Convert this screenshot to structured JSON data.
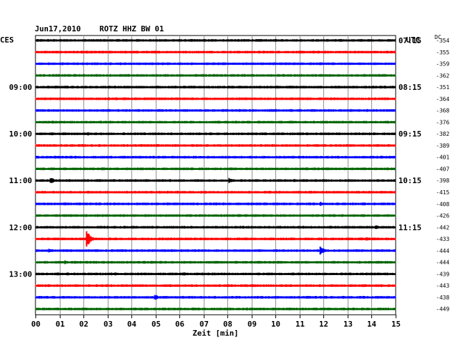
{
  "header": {
    "date": "Jun17,2010",
    "station": "ROTZ HHZ BW 01",
    "left_tz": "CES",
    "right_tz": "UTC",
    "dc_label": "DC"
  },
  "chart_data": {
    "type": "line",
    "title": "Jun17,2010   ROTZ HHZ BW 01",
    "xlabel": "Zeit [min]",
    "xlim": [
      0,
      15
    ],
    "x_ticks": [
      "00",
      "01",
      "02",
      "03",
      "04",
      "05",
      "06",
      "07",
      "08",
      "09",
      "10",
      "11",
      "12",
      "13",
      "14",
      "15"
    ],
    "grid": true,
    "trace_colors": [
      "#000000",
      "#ff0000",
      "#0000ff",
      "#006400"
    ],
    "left_hour_labels": [
      {
        "trace": 4,
        "label": "09:00"
      },
      {
        "trace": 8,
        "label": "10:00"
      },
      {
        "trace": 12,
        "label": "11:00"
      },
      {
        "trace": 16,
        "label": "12:00"
      },
      {
        "trace": 20,
        "label": "13:00"
      }
    ],
    "right_hour_labels": [
      {
        "trace": 0,
        "label": "07:15"
      },
      {
        "trace": 4,
        "label": "08:15"
      },
      {
        "trace": 8,
        "label": "09:15"
      },
      {
        "trace": 12,
        "label": "10:15"
      },
      {
        "trace": 16,
        "label": "11:15"
      }
    ],
    "dc_offsets": [
      "-354",
      "-355",
      "-359",
      "-362",
      "-351",
      "-364",
      "-368",
      "-376",
      "-382",
      "-389",
      "-401",
      "-407",
      "-398",
      "-415",
      "-408",
      "-426",
      "-442",
      "-433",
      "-444",
      "-444",
      "-439",
      "-443",
      "-438",
      "-449"
    ],
    "events": [
      {
        "trace": 8,
        "minute": 2.2,
        "amplitude": 3
      },
      {
        "trace": 12,
        "minute": 0.65,
        "amplitude": 5
      },
      {
        "trace": 12,
        "minute": 8.1,
        "amplitude": 4
      },
      {
        "trace": 13,
        "minute": 2.2,
        "amplitude": 2
      },
      {
        "trace": 14,
        "minute": 11.9,
        "amplitude": 3
      },
      {
        "trace": 16,
        "minute": 14.2,
        "amplitude": 3
      },
      {
        "trace": 17,
        "minute": 2.15,
        "amplitude": 12
      },
      {
        "trace": 17,
        "minute": 13.8,
        "amplitude": 3
      },
      {
        "trace": 18,
        "minute": 0.6,
        "amplitude": 3
      },
      {
        "trace": 18,
        "minute": 11.9,
        "amplitude": 6
      },
      {
        "trace": 19,
        "minute": 1.25,
        "amplitude": 3
      },
      {
        "trace": 20,
        "minute": 6.2,
        "amplitude": 3
      },
      {
        "trace": 22,
        "minute": 5.0,
        "amplitude": 4
      }
    ]
  }
}
